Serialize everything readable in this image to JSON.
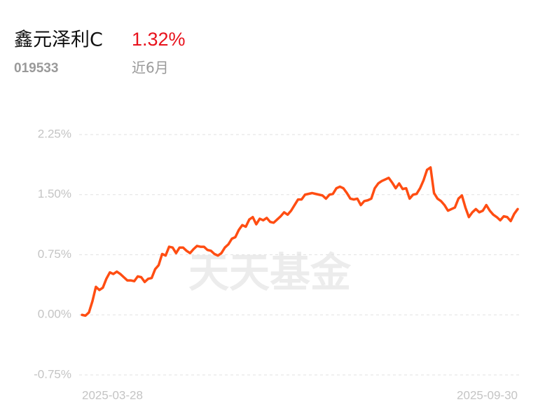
{
  "header": {
    "fund_name": "鑫元泽利C",
    "return": "1.32%",
    "code": "019533",
    "period": "近6月"
  },
  "watermark": "天天基金",
  "chart_data": {
    "type": "line",
    "categories": [
      "2025-03-28",
      null,
      null,
      null,
      null,
      null,
      null,
      null,
      null,
      null,
      null,
      null,
      null,
      null,
      null,
      null,
      null,
      null,
      null,
      null,
      null,
      null,
      null,
      null,
      null,
      null,
      null,
      null,
      null,
      null,
      null,
      null,
      null,
      null,
      null,
      null,
      null,
      null,
      null,
      null,
      null,
      null,
      null,
      null,
      null,
      null,
      null,
      null,
      null,
      null,
      null,
      null,
      null,
      null,
      null,
      null,
      null,
      null,
      null,
      null,
      null,
      null,
      null,
      null,
      null,
      null,
      null,
      null,
      null,
      null,
      null,
      null,
      null,
      null,
      null,
      null,
      null,
      null,
      null,
      null,
      null,
      null,
      null,
      null,
      null,
      null,
      null,
      null,
      null,
      null,
      null,
      null,
      null,
      null,
      null,
      null,
      null,
      null,
      null,
      null,
      null,
      null,
      null,
      null,
      null,
      null,
      null,
      null,
      null,
      null,
      null,
      null,
      null,
      null,
      null,
      null,
      null,
      null,
      null,
      null,
      null,
      null,
      null,
      null,
      null,
      "2025-09-30"
    ],
    "values": [
      0.0,
      -0.01,
      0.03,
      0.17,
      0.35,
      0.31,
      0.34,
      0.45,
      0.53,
      0.51,
      0.54,
      0.51,
      0.47,
      0.43,
      0.43,
      0.42,
      0.48,
      0.47,
      0.41,
      0.45,
      0.46,
      0.57,
      0.62,
      0.76,
      0.74,
      0.85,
      0.84,
      0.77,
      0.84,
      0.84,
      0.8,
      0.77,
      0.82,
      0.86,
      0.85,
      0.85,
      0.81,
      0.8,
      0.76,
      0.74,
      0.77,
      0.84,
      0.88,
      0.95,
      0.97,
      1.06,
      1.12,
      1.1,
      1.19,
      1.22,
      1.13,
      1.2,
      1.18,
      1.21,
      1.16,
      1.15,
      1.19,
      1.23,
      1.28,
      1.25,
      1.3,
      1.37,
      1.44,
      1.44,
      1.5,
      1.51,
      1.52,
      1.51,
      1.5,
      1.49,
      1.45,
      1.5,
      1.51,
      1.58,
      1.6,
      1.58,
      1.52,
      1.45,
      1.44,
      1.45,
      1.37,
      1.42,
      1.43,
      1.45,
      1.58,
      1.64,
      1.67,
      1.69,
      1.71,
      1.65,
      1.58,
      1.64,
      1.57,
      1.58,
      1.45,
      1.5,
      1.51,
      1.58,
      1.68,
      1.81,
      1.84,
      1.52,
      1.45,
      1.42,
      1.37,
      1.3,
      1.32,
      1.34,
      1.45,
      1.49,
      1.34,
      1.22,
      1.28,
      1.32,
      1.28,
      1.3,
      1.37,
      1.3,
      1.25,
      1.22,
      1.18,
      1.23,
      1.22,
      1.17,
      1.26,
      1.32
    ],
    "color": "#ff4d12",
    "ylim": [
      -0.75,
      2.25
    ],
    "yticks": [
      {
        "value": -0.75,
        "label": "-0.75%"
      },
      {
        "value": 0,
        "label": "0.00%"
      },
      {
        "value": 0.75,
        "label": "0.75%"
      },
      {
        "value": 1.5,
        "label": "1.50%"
      },
      {
        "value": 2.25,
        "label": "2.25%"
      }
    ],
    "grid": true
  }
}
